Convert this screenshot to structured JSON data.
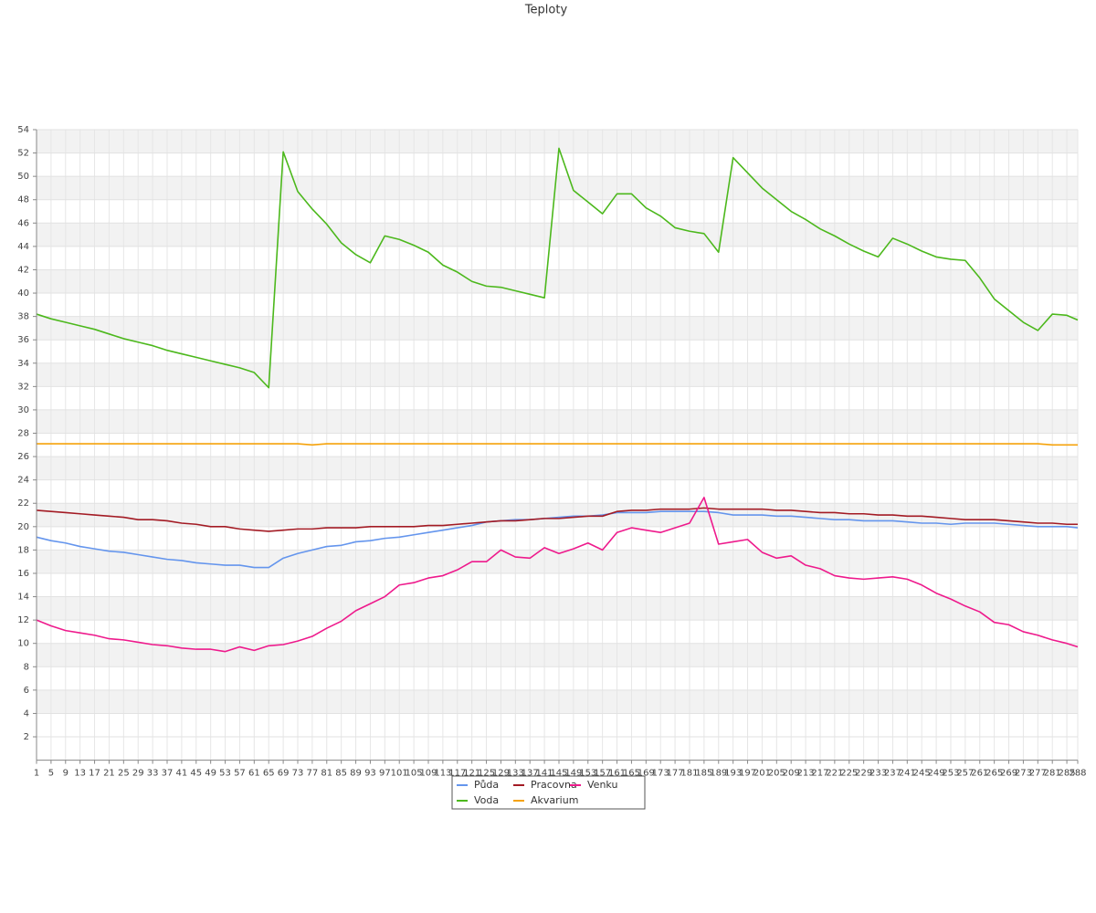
{
  "chart_data": {
    "type": "line",
    "title": "Teploty",
    "x": [
      1,
      5,
      9,
      13,
      17,
      21,
      25,
      29,
      33,
      37,
      41,
      45,
      49,
      53,
      57,
      61,
      65,
      69,
      73,
      77,
      81,
      85,
      89,
      93,
      97,
      101,
      105,
      109,
      113,
      117,
      121,
      125,
      129,
      133,
      137,
      141,
      145,
      149,
      153,
      157,
      161,
      165,
      169,
      173,
      177,
      181,
      185,
      189,
      193,
      197,
      201,
      205,
      209,
      213,
      217,
      221,
      225,
      229,
      233,
      237,
      241,
      245,
      249,
      253,
      257,
      261,
      265,
      269,
      273,
      277,
      281,
      285,
      288
    ],
    "xlim": [
      1,
      288
    ],
    "ylim": [
      0,
      54
    ],
    "yticks": [
      2,
      4,
      6,
      8,
      10,
      12,
      14,
      16,
      18,
      20,
      22,
      24,
      26,
      28,
      30,
      32,
      34,
      36,
      38,
      40,
      42,
      44,
      46,
      48,
      50,
      52,
      54
    ],
    "grid": true,
    "series": [
      {
        "name": "Půda",
        "color": "#6495ed",
        "values": [
          19.1,
          18.8,
          18.6,
          18.3,
          18.1,
          17.9,
          17.8,
          17.6,
          17.4,
          17.2,
          17.1,
          16.9,
          16.8,
          16.7,
          16.7,
          16.5,
          16.5,
          17.3,
          17.7,
          18.0,
          18.3,
          18.4,
          18.7,
          18.8,
          19.0,
          19.1,
          19.3,
          19.5,
          19.7,
          19.9,
          20.1,
          20.4,
          20.5,
          20.6,
          20.6,
          20.7,
          20.8,
          20.9,
          20.9,
          21.0,
          21.2,
          21.2,
          21.2,
          21.3,
          21.3,
          21.3,
          21.3,
          21.2,
          21.0,
          21.0,
          21.0,
          20.9,
          20.9,
          20.8,
          20.7,
          20.6,
          20.6,
          20.5,
          20.5,
          20.5,
          20.4,
          20.3,
          20.3,
          20.2,
          20.3,
          20.3,
          20.3,
          20.2,
          20.1,
          20.0,
          20.0,
          20.0,
          19.9
        ]
      },
      {
        "name": "Voda",
        "color": "#4cb81c",
        "values": [
          38.2,
          37.8,
          37.5,
          37.2,
          36.9,
          36.5,
          36.1,
          35.8,
          35.5,
          35.1,
          34.8,
          34.5,
          34.2,
          33.9,
          33.6,
          33.2,
          31.9,
          52.1,
          48.7,
          47.2,
          45.9,
          44.3,
          43.3,
          42.6,
          44.9,
          44.6,
          44.1,
          43.5,
          42.4,
          41.8,
          41.0,
          40.6,
          40.5,
          40.2,
          39.9,
          39.6,
          52.4,
          48.8,
          47.8,
          46.8,
          48.5,
          48.5,
          47.3,
          46.6,
          45.6,
          45.3,
          45.1,
          43.5,
          51.6,
          50.3,
          49.0,
          48.0,
          47.0,
          46.3,
          45.5,
          44.9,
          44.2,
          43.6,
          43.1,
          44.7,
          44.2,
          43.6,
          43.1,
          42.9,
          42.8,
          41.3,
          39.5,
          38.5,
          37.5,
          36.8,
          38.2,
          38.1,
          37.7
        ]
      },
      {
        "name": "Pracovna",
        "color": "#a31b24",
        "values": [
          21.4,
          21.3,
          21.2,
          21.1,
          21.0,
          20.9,
          20.8,
          20.6,
          20.6,
          20.5,
          20.3,
          20.2,
          20.0,
          20.0,
          19.8,
          19.7,
          19.6,
          19.7,
          19.8,
          19.8,
          19.9,
          19.9,
          19.9,
          20.0,
          20.0,
          20.0,
          20.0,
          20.1,
          20.1,
          20.2,
          20.3,
          20.4,
          20.5,
          20.5,
          20.6,
          20.7,
          20.7,
          20.8,
          20.9,
          20.9,
          21.3,
          21.4,
          21.4,
          21.5,
          21.5,
          21.5,
          21.6,
          21.5,
          21.5,
          21.5,
          21.5,
          21.4,
          21.4,
          21.3,
          21.2,
          21.2,
          21.1,
          21.1,
          21.0,
          21.0,
          20.9,
          20.9,
          20.8,
          20.7,
          20.6,
          20.6,
          20.6,
          20.5,
          20.4,
          20.3,
          20.3,
          20.2,
          20.2
        ]
      },
      {
        "name": "Akvarium",
        "color": "#f5a20a",
        "values": [
          27.1,
          27.1,
          27.1,
          27.1,
          27.1,
          27.1,
          27.1,
          27.1,
          27.1,
          27.1,
          27.1,
          27.1,
          27.1,
          27.1,
          27.1,
          27.1,
          27.1,
          27.1,
          27.1,
          27.0,
          27.1,
          27.1,
          27.1,
          27.1,
          27.1,
          27.1,
          27.1,
          27.1,
          27.1,
          27.1,
          27.1,
          27.1,
          27.1,
          27.1,
          27.1,
          27.1,
          27.1,
          27.1,
          27.1,
          27.1,
          27.1,
          27.1,
          27.1,
          27.1,
          27.1,
          27.1,
          27.1,
          27.1,
          27.1,
          27.1,
          27.1,
          27.1,
          27.1,
          27.1,
          27.1,
          27.1,
          27.1,
          27.1,
          27.1,
          27.1,
          27.1,
          27.1,
          27.1,
          27.1,
          27.1,
          27.1,
          27.1,
          27.1,
          27.1,
          27.1,
          27.0,
          27.0,
          27.0
        ]
      },
      {
        "name": "Venku",
        "color": "#ee1a8c",
        "values": [
          12.0,
          11.5,
          11.1,
          10.9,
          10.7,
          10.4,
          10.3,
          10.1,
          9.9,
          9.8,
          9.6,
          9.5,
          9.5,
          9.3,
          9.7,
          9.4,
          9.8,
          9.9,
          10.2,
          10.6,
          11.3,
          11.9,
          12.8,
          13.4,
          14.0,
          15.0,
          15.2,
          15.6,
          15.8,
          16.3,
          17.0,
          17.0,
          18.0,
          17.4,
          17.3,
          18.2,
          17.7,
          18.1,
          18.6,
          18.0,
          19.5,
          19.9,
          19.7,
          19.5,
          19.9,
          20.3,
          22.5,
          18.5,
          18.7,
          18.9,
          17.8,
          17.3,
          17.5,
          16.7,
          16.4,
          15.8,
          15.6,
          15.5,
          15.6,
          15.7,
          15.5,
          15.0,
          14.3,
          13.8,
          13.2,
          12.7,
          11.8,
          11.6,
          11.0,
          10.7,
          10.3,
          10.0,
          9.7
        ]
      }
    ]
  }
}
